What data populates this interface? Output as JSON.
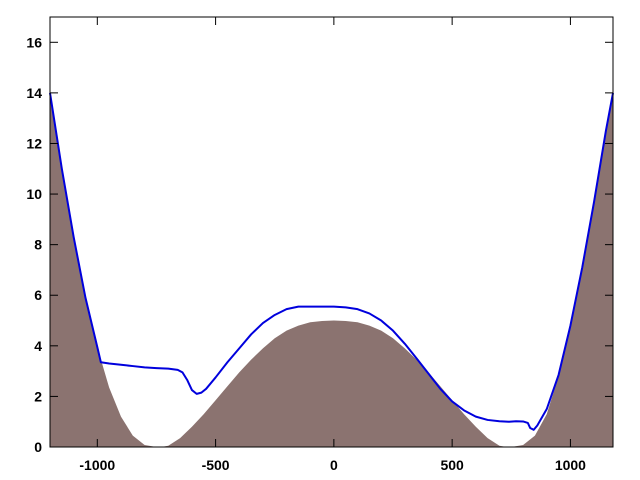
{
  "chart_data": {
    "type": "area",
    "title": "",
    "xlabel": "",
    "ylabel": "",
    "xlim": [
      -1200,
      1180
    ],
    "ylim": [
      0,
      17
    ],
    "xticks": [
      -1000,
      -500,
      0,
      500,
      1000
    ],
    "yticks": [
      0,
      2,
      4,
      6,
      8,
      10,
      12,
      14,
      16
    ],
    "grid": false,
    "legend": "none",
    "series": [
      {
        "kind": "filled-area",
        "color": "#8b7370",
        "x": [
          -1200,
          -1150,
          -1100,
          -1050,
          -1000,
          -950,
          -900,
          -850,
          -800,
          -750,
          -730,
          -700,
          -650,
          -600,
          -550,
          -500,
          -450,
          -400,
          -350,
          -300,
          -250,
          -200,
          -150,
          -100,
          -50,
          0,
          50,
          100,
          150,
          200,
          250,
          300,
          350,
          400,
          450,
          500,
          550,
          600,
          650,
          700,
          730,
          750,
          800,
          850,
          900,
          950,
          1000,
          1050,
          1100,
          1150,
          1180
        ],
        "y": [
          14.0,
          11.0,
          8.3,
          5.9,
          3.95,
          2.35,
          1.2,
          0.45,
          0.08,
          0.0,
          0.0,
          0.05,
          0.35,
          0.8,
          1.3,
          1.85,
          2.4,
          2.95,
          3.45,
          3.9,
          4.3,
          4.6,
          4.8,
          4.93,
          4.98,
          5.0,
          4.98,
          4.93,
          4.8,
          4.6,
          4.3,
          3.9,
          3.45,
          2.95,
          2.4,
          1.85,
          1.3,
          0.8,
          0.35,
          0.05,
          0.0,
          0.0,
          0.08,
          0.45,
          1.3,
          2.8,
          4.8,
          7.1,
          9.7,
          12.5,
          14.0
        ]
      },
      {
        "kind": "line",
        "color": "#0000dd",
        "x": [
          -1200,
          -1150,
          -1100,
          -1050,
          -1000,
          -985,
          -950,
          -900,
          -850,
          -800,
          -750,
          -700,
          -660,
          -640,
          -620,
          -600,
          -580,
          -560,
          -540,
          -500,
          -450,
          -400,
          -350,
          -300,
          -250,
          -200,
          -150,
          -100,
          -50,
          0,
          50,
          100,
          150,
          200,
          250,
          300,
          350,
          400,
          450,
          500,
          550,
          600,
          650,
          700,
          740,
          770,
          800,
          820,
          830,
          845,
          860,
          900,
          950,
          1000,
          1050,
          1100,
          1150,
          1180
        ],
        "y": [
          14.0,
          11.0,
          8.3,
          5.9,
          3.95,
          3.35,
          3.3,
          3.25,
          3.2,
          3.15,
          3.12,
          3.1,
          3.05,
          2.95,
          2.65,
          2.25,
          2.1,
          2.15,
          2.3,
          2.75,
          3.35,
          3.9,
          4.45,
          4.9,
          5.22,
          5.45,
          5.55,
          5.55,
          5.55,
          5.55,
          5.52,
          5.45,
          5.28,
          5.0,
          4.6,
          4.08,
          3.5,
          2.9,
          2.3,
          1.8,
          1.45,
          1.2,
          1.07,
          1.02,
          1.0,
          1.02,
          1.01,
          0.95,
          0.75,
          0.68,
          0.85,
          1.5,
          2.85,
          4.8,
          7.1,
          9.7,
          12.5,
          14.0
        ]
      }
    ]
  }
}
